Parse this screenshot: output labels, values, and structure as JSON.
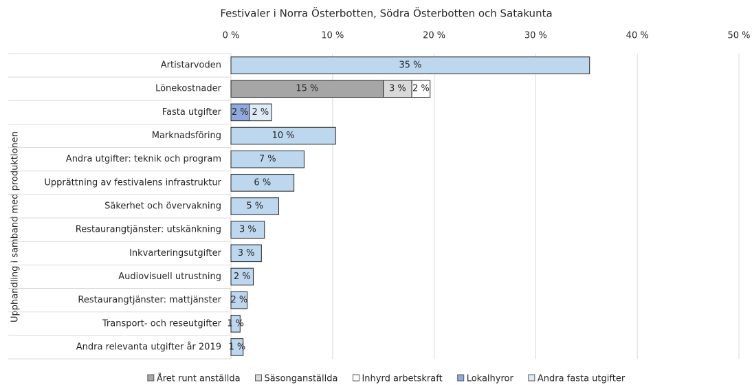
{
  "chart_data": {
    "type": "stacked-bar-horizontal",
    "title": "Festivaler i Norra Österbotten, Södra Österbotten och Satakunta",
    "y_axis_label": "Upphandling i samband med produktionen",
    "categories": [
      "Artistarvoden",
      "Lönekostnader",
      "Fasta utgifter",
      "Marknadsföring",
      "Andra utgifter: teknik och program",
      "Upprättning av festivalens infrastruktur",
      "Säkerhet och övervakning",
      "Restaurangtjänster: utskänkning",
      "Inkvarteringsutgifter",
      "Audiovisuell utrustning",
      "Restaurangtjänster: mattjänster",
      "Transport- och reseutgifter",
      "Andra relevanta utgifter år 2019"
    ],
    "xlim": [
      0,
      50
    ],
    "xticks": [
      {
        "value": 0,
        "label": "0 %"
      },
      {
        "value": 10,
        "label": "10 %"
      },
      {
        "value": 20,
        "label": "20 %"
      },
      {
        "value": 30,
        "label": "30 %"
      },
      {
        "value": 40,
        "label": "40 %"
      },
      {
        "value": 50,
        "label": "50 %"
      }
    ],
    "grid": true,
    "legend": "bottom",
    "series": [
      {
        "name": "Året runt anställda",
        "color": "#a6a6a6",
        "values": [
          null,
          15.0,
          null,
          null,
          null,
          null,
          null,
          null,
          null,
          null,
          null,
          null,
          null
        ],
        "value_labels": [
          null,
          "15 %",
          null,
          null,
          null,
          null,
          null,
          null,
          null,
          null,
          null,
          null,
          null
        ]
      },
      {
        "name": "Säsonganställda",
        "color": "#d9d9d9",
        "values": [
          null,
          2.8,
          null,
          null,
          null,
          null,
          null,
          null,
          null,
          null,
          null,
          null,
          null
        ],
        "value_labels": [
          null,
          "3 %",
          null,
          null,
          null,
          null,
          null,
          null,
          null,
          null,
          null,
          null,
          null
        ]
      },
      {
        "name": "Inhyrd arbetskraft",
        "color": "#ffffff",
        "values": [
          null,
          1.8,
          null,
          null,
          null,
          null,
          null,
          null,
          null,
          null,
          null,
          null,
          null
        ],
        "value_labels": [
          null,
          "2 %",
          null,
          null,
          null,
          null,
          null,
          null,
          null,
          null,
          null,
          null,
          null
        ]
      },
      {
        "name": "Lokalhyror",
        "color": "#8faadc",
        "values": [
          null,
          null,
          1.8,
          null,
          null,
          null,
          null,
          null,
          null,
          null,
          null,
          null,
          null
        ],
        "value_labels": [
          null,
          null,
          "2 %",
          null,
          null,
          null,
          null,
          null,
          null,
          null,
          null,
          null,
          null
        ]
      },
      {
        "name": "Andra fasta utgifter",
        "color": "#deebf7",
        "values": [
          null,
          null,
          2.2,
          null,
          null,
          null,
          null,
          null,
          null,
          null,
          null,
          null,
          null
        ],
        "value_labels": [
          null,
          null,
          "2 %",
          null,
          null,
          null,
          null,
          null,
          null,
          null,
          null,
          null,
          null
        ]
      },
      {
        "color": "#bdd7ee",
        "values": [
          35.3,
          null,
          null,
          10.3,
          7.2,
          6.2,
          4.7,
          3.3,
          3.0,
          2.2,
          1.6,
          0.9,
          1.2
        ],
        "value_labels": [
          "35 %",
          null,
          null,
          "10 %",
          "7 %",
          "6 %",
          "5 %",
          "3 %",
          "3 %",
          "2 %",
          "2 %",
          "1 %",
          "1 %"
        ]
      }
    ]
  }
}
